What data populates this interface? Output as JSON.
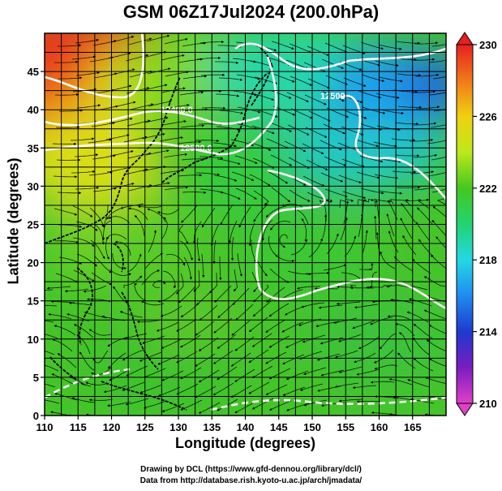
{
  "title": "GSM 06Z17Jul2024 (200.0hPa)",
  "x_axis_title": "Longitude (degrees)",
  "y_axis_title": "Latitude  (degrees)",
  "credit_line1": "Drawing by DCL (https://www.gfd-dennou.org/library/dcl/)",
  "credit_line2": "Data from http://database.rish.kyoto-u.ac.jp/arch/jmadata/",
  "map": {
    "lon_range": [
      110,
      170
    ],
    "lat_range": [
      0,
      50
    ],
    "lon_ticks": [
      "110",
      "115",
      "120",
      "125",
      "130",
      "135",
      "140",
      "145",
      "150",
      "155",
      "160",
      "165"
    ],
    "lat_ticks": [
      "0",
      "5",
      "10",
      "15",
      "20",
      "25",
      "30",
      "35",
      "40",
      "45"
    ],
    "contour_labels": [
      "12400.0",
      "12500.0",
      "12500"
    ]
  },
  "colorbar": {
    "ticks": [
      "210",
      "214",
      "218",
      "222",
      "226",
      "230"
    ],
    "stops": [
      {
        "value": 210,
        "color": "#e040c8"
      },
      {
        "value": 212,
        "color": "#7a1cc0"
      },
      {
        "value": 214,
        "color": "#1e3ad0"
      },
      {
        "value": 216,
        "color": "#1e8cf0"
      },
      {
        "value": 218,
        "color": "#24d8e4"
      },
      {
        "value": 220,
        "color": "#22d470"
      },
      {
        "value": 222,
        "color": "#44c81e"
      },
      {
        "value": 224,
        "color": "#bce81c"
      },
      {
        "value": 226,
        "color": "#f0d010"
      },
      {
        "value": 228,
        "color": "#f07a18"
      },
      {
        "value": 230,
        "color": "#e82020"
      }
    ]
  },
  "colors": {
    "tropics": "#48c42a",
    "northwest_warm": "#e83a1c",
    "northeast_cool": "#1e78e8",
    "contour": "#ffffff"
  }
}
